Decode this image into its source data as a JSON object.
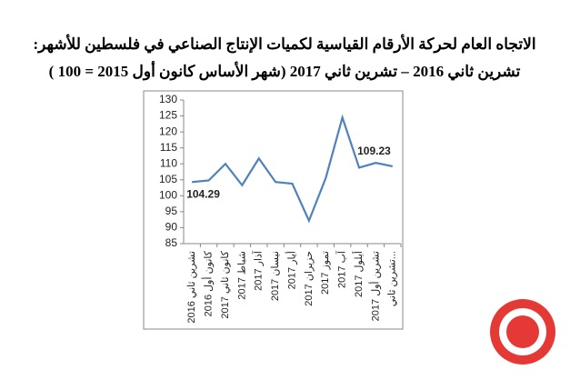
{
  "chart_data": {
    "type": "line",
    "title": "الاتجاه العام لحركة الأرقام القياسية لكميات الإنتاج الصناعي في فلسطين للأشهر:",
    "subtitle": "تشرين ثاني 2016 – تشرين ثاني 2017 (شهر الأساس كانون أول 2015 = 100 )",
    "categories": [
      "تشرين ثاني 2016",
      "كانون أول 2016",
      "كانون ثاني 2017",
      "شباط 2017",
      "آذار 2017",
      "نيسان 2017",
      "أيار 2017",
      "حزيران 2017",
      "تموز 2017",
      "آب 2017",
      "أيلول 2017",
      "تشرين أول 2017",
      "تشرين ثاني..."
    ],
    "values": [
      104.29,
      104.8,
      110,
      103.3,
      111.7,
      104.3,
      103.8,
      92.2,
      105.5,
      124.5,
      108.8,
      110.3,
      109.23
    ],
    "value_labels": [
      "104.29",
      null,
      null,
      null,
      null,
      null,
      null,
      null,
      null,
      null,
      null,
      null,
      "109.23"
    ],
    "color": "#4f81bd",
    "ylim": [
      85,
      130
    ],
    "yticks": [
      85,
      90,
      95,
      100,
      105,
      110,
      115,
      120,
      125,
      130
    ],
    "grid": false
  }
}
